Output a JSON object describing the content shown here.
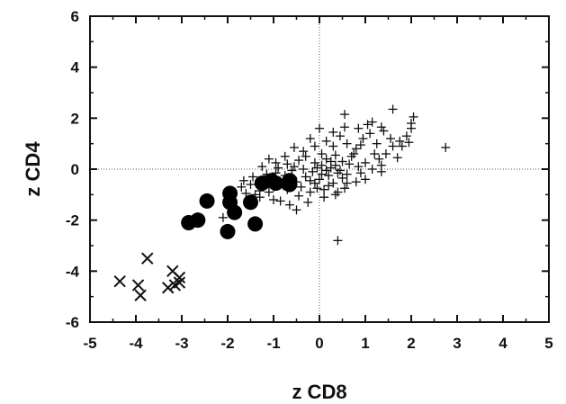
{
  "chart_data": {
    "type": "scatter",
    "title": "",
    "xlabel": "z CD8",
    "ylabel": "z CD4",
    "xlim": [
      -5,
      5
    ],
    "ylim": [
      -6,
      6
    ],
    "xticks": [
      -5,
      -4,
      -3,
      -2,
      -1,
      0,
      1,
      2,
      3,
      4,
      5
    ],
    "yticks": [
      -6,
      -4,
      -2,
      0,
      2,
      4,
      6
    ],
    "reference_lines": {
      "x": 0,
      "y": 0,
      "style": "dotted"
    },
    "grid": false,
    "legend": "none",
    "series": [
      {
        "marker": "plus",
        "points": [
          [
            -2.1,
            -1.9
          ],
          [
            -1.7,
            -0.7
          ],
          [
            -1.6,
            -0.95
          ],
          [
            -1.5,
            -0.6
          ],
          [
            -1.4,
            -1.0
          ],
          [
            -1.3,
            -0.85
          ],
          [
            -1.2,
            -0.4
          ],
          [
            -1.1,
            -0.9
          ],
          [
            -1.0,
            -0.7
          ],
          [
            -0.9,
            -0.5
          ],
          [
            -0.8,
            -0.6
          ],
          [
            -0.7,
            -0.8
          ],
          [
            -0.6,
            -0.3
          ],
          [
            -0.5,
            -0.5
          ],
          [
            -0.4,
            -0.7
          ],
          [
            -0.3,
            -0.3
          ],
          [
            -0.2,
            -0.9
          ],
          [
            -0.1,
            -0.55
          ],
          [
            0.0,
            -0.4
          ],
          [
            0.1,
            -0.8
          ],
          [
            0.2,
            -0.25
          ],
          [
            0.3,
            -0.55
          ],
          [
            0.4,
            -0.9
          ],
          [
            0.5,
            -0.35
          ],
          [
            0.6,
            -0.2
          ],
          [
            -1.15,
            -0.2
          ],
          [
            -0.95,
            -0.15
          ],
          [
            -0.75,
            -0.25
          ],
          [
            -0.55,
            0.1
          ],
          [
            -0.35,
            0.0
          ],
          [
            -0.15,
            -0.1
          ],
          [
            0.05,
            0.15
          ],
          [
            0.25,
            0.05
          ],
          [
            0.45,
            -0.05
          ],
          [
            0.65,
            0.2
          ],
          [
            -1.0,
            -1.2
          ],
          [
            -0.5,
            -1.6
          ],
          [
            -0.85,
            -1.25
          ],
          [
            -0.45,
            -1.05
          ],
          [
            -0.25,
            -1.3
          ],
          [
            0.1,
            -1.1
          ],
          [
            0.35,
            -1.0
          ],
          [
            0.55,
            -0.75
          ],
          [
            0.8,
            -0.5
          ],
          [
            1.0,
            -0.4
          ],
          [
            -1.3,
            -1.1
          ],
          [
            -0.65,
            -1.4
          ],
          [
            -1.55,
            -1.3
          ],
          [
            -0.9,
            0.05
          ],
          [
            -0.7,
            0.2
          ],
          [
            -0.45,
            0.35
          ],
          [
            -0.3,
            0.5
          ],
          [
            -0.1,
            0.25
          ],
          [
            0.15,
            0.4
          ],
          [
            0.35,
            0.55
          ],
          [
            0.5,
            0.3
          ],
          [
            0.7,
            0.5
          ],
          [
            0.85,
            0.1
          ],
          [
            1.0,
            0.25
          ],
          [
            1.15,
            0.0
          ],
          [
            1.3,
            0.4
          ],
          [
            1.45,
            0.6
          ],
          [
            1.6,
            0.9
          ],
          [
            1.75,
            1.1
          ],
          [
            1.9,
            1.3
          ],
          [
            2.0,
            1.8
          ],
          [
            2.05,
            2.05
          ],
          [
            2.0,
            1.6
          ],
          [
            1.8,
            0.9
          ],
          [
            1.55,
            1.2
          ],
          [
            1.4,
            1.5
          ],
          [
            1.25,
            1.0
          ],
          [
            1.1,
            1.4
          ],
          [
            0.95,
            1.2
          ],
          [
            0.8,
            0.8
          ],
          [
            0.6,
            1.0
          ],
          [
            0.45,
            1.3
          ],
          [
            0.3,
            0.9
          ],
          [
            0.15,
            1.1
          ],
          [
            0.0,
            1.6
          ],
          [
            -0.1,
            0.9
          ],
          [
            -0.2,
            1.2
          ],
          [
            -0.35,
            0.7
          ],
          [
            -0.55,
            0.85
          ],
          [
            -0.75,
            0.5
          ],
          [
            -1.1,
            0.4
          ],
          [
            -1.25,
            0.1
          ],
          [
            -1.45,
            -0.3
          ],
          [
            -1.65,
            -0.45
          ],
          [
            -0.95,
            0.25
          ],
          [
            1.6,
            2.35
          ],
          [
            1.15,
            1.85
          ],
          [
            0.55,
            2.15
          ],
          [
            0.3,
            1.45
          ],
          [
            0.55,
            1.65
          ],
          [
            0.85,
            1.6
          ],
          [
            1.05,
            1.75
          ],
          [
            1.35,
            1.65
          ],
          [
            1.7,
            0.45
          ],
          [
            1.95,
            1.05
          ],
          [
            2.75,
            0.85
          ],
          [
            0.75,
            0.6
          ],
          [
            0.9,
            0.95
          ],
          [
            1.2,
            0.6
          ],
          [
            1.35,
            0.15
          ],
          [
            0.25,
            0.3
          ],
          [
            0.05,
            0.6
          ],
          [
            -0.05,
            0.05
          ],
          [
            -0.6,
            -0.05
          ],
          [
            -0.2,
            -0.45
          ],
          [
            0.4,
            -0.15
          ],
          [
            0.6,
            -0.55
          ],
          [
            1.35,
            -0.1
          ],
          [
            0.9,
            -0.15
          ],
          [
            0.05,
            -0.2
          ],
          [
            0.2,
            -0.65
          ],
          [
            -0.05,
            -0.75
          ],
          [
            0.15,
            -0.05
          ],
          [
            0.35,
            0.15
          ],
          [
            0.4,
            -2.8
          ]
        ]
      },
      {
        "marker": "filled-circle",
        "points": [
          [
            -2.85,
            -2.1
          ],
          [
            -2.65,
            -2.0
          ],
          [
            -2.45,
            -1.25
          ],
          [
            -1.95,
            -0.95
          ],
          [
            -1.95,
            -1.3
          ],
          [
            -1.85,
            -1.7
          ],
          [
            -1.5,
            -1.3
          ],
          [
            -1.4,
            -2.15
          ],
          [
            -2.0,
            -2.45
          ],
          [
            -1.25,
            -0.55
          ],
          [
            -1.05,
            -0.45
          ],
          [
            -0.95,
            -0.55
          ],
          [
            -0.65,
            -0.45
          ],
          [
            -0.65,
            -0.6
          ]
        ]
      },
      {
        "marker": "x",
        "points": [
          [
            -4.35,
            -4.4
          ],
          [
            -3.95,
            -4.55
          ],
          [
            -3.9,
            -4.95
          ],
          [
            -3.75,
            -3.5
          ],
          [
            -3.3,
            -4.65
          ],
          [
            -3.2,
            -4.0
          ],
          [
            -3.15,
            -4.55
          ],
          [
            -3.05,
            -4.25
          ],
          [
            -3.05,
            -4.45
          ]
        ]
      }
    ]
  }
}
